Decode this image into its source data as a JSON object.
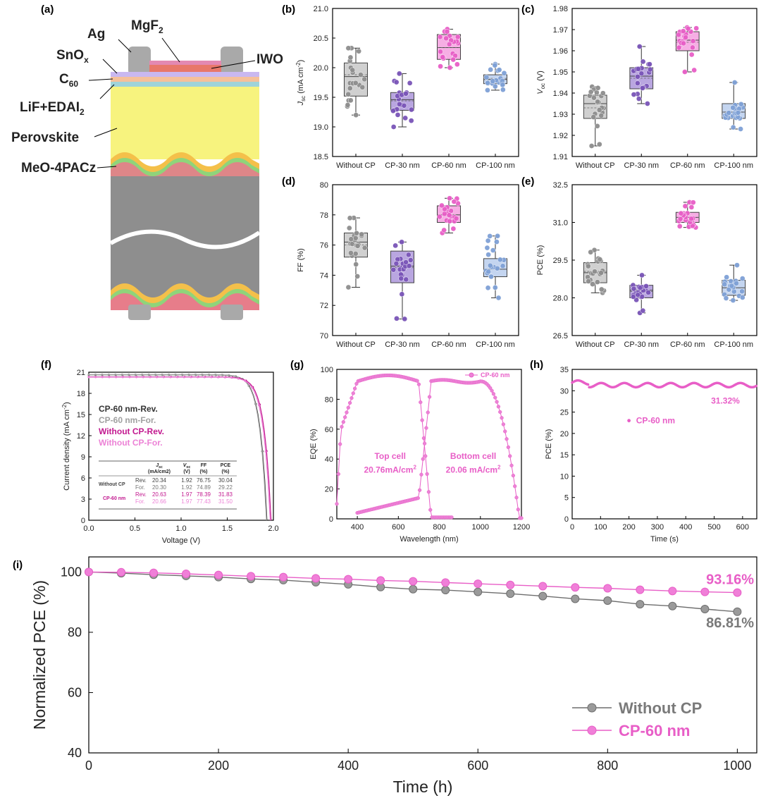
{
  "panels": {
    "a": "(a)",
    "b": "(b)",
    "c": "(c)",
    "d": "(d)",
    "e": "(e)",
    "f": "(f)",
    "g": "(g)",
    "h": "(h)",
    "i": "(i)"
  },
  "colors": {
    "gray": "#8e8e8e",
    "purple": "#7a55b8",
    "pink": "#e85ec7",
    "blue": "#7fa1d6",
    "magenta": "#c2188f",
    "lightpink": "#ec82d6"
  },
  "diagram": {
    "labels": {
      "ag": "Ag",
      "mgf2": "MgF",
      "mgf2_sub": "2",
      "iwo": "IWO",
      "snox": "SnO",
      "snox_sub": "x",
      "c60": "C",
      "c60_sub": "60",
      "lif": "LiF+EDAI",
      "lif_sub": "2",
      "perovskite": "Perovskite",
      "meo": "MeO-4PACz"
    }
  },
  "chart_data": [
    {
      "id": "b",
      "type": "box",
      "categories": [
        "Without CP",
        "CP-30 nm",
        "CP-60 nm",
        "CP-100 nm"
      ],
      "ylabel": "J",
      "ylabel_sub": "sc",
      "ylabel_unit": " (mA cm",
      "ylabel_sup": "-2",
      "ylabel_end": ")",
      "ylim": [
        18.5,
        21.0
      ],
      "ticks": [
        "18.5",
        "19.0",
        "19.5",
        "20.0",
        "20.5",
        "21.0"
      ],
      "stats": [
        {
          "min": 19.2,
          "q1": 19.52,
          "med": 19.85,
          "q3": 20.08,
          "max": 20.33,
          "mean": 19.88
        },
        {
          "min": 19.0,
          "q1": 19.28,
          "med": 19.46,
          "q3": 19.58,
          "max": 19.9,
          "mean": 19.44
        },
        {
          "min": 20.0,
          "q1": 20.14,
          "med": 20.34,
          "q3": 20.56,
          "max": 20.65,
          "mean": 20.34
        },
        {
          "min": 19.62,
          "q1": 19.73,
          "med": 19.8,
          "q3": 19.88,
          "max": 20.06,
          "mean": 19.82
        }
      ]
    },
    {
      "id": "c",
      "type": "box",
      "categories": [
        "Without CP",
        "CP-30 nm",
        "CP-60 nm",
        "CP-100 nm"
      ],
      "ylabel": "V",
      "ylabel_sub": "oc",
      "ylabel_unit": " (V)",
      "ylabel_sup": "",
      "ylabel_end": "",
      "ylim": [
        1.91,
        1.98
      ],
      "ticks": [
        "1.91",
        "1.92",
        "1.93",
        "1.94",
        "1.95",
        "1.96",
        "1.97",
        "1.98"
      ],
      "stats": [
        {
          "min": 1.915,
          "q1": 1.928,
          "med": 1.935,
          "q3": 1.939,
          "max": 1.943,
          "mean": 1.933
        },
        {
          "min": 1.935,
          "q1": 1.942,
          "med": 1.948,
          "q3": 1.952,
          "max": 1.962,
          "mean": 1.947
        },
        {
          "min": 1.95,
          "q1": 1.96,
          "med": 1.965,
          "q3": 1.969,
          "max": 1.971,
          "mean": 1.964
        },
        {
          "min": 1.923,
          "q1": 1.928,
          "med": 1.931,
          "q3": 1.935,
          "max": 1.945,
          "mean": 1.931
        }
      ]
    },
    {
      "id": "d",
      "type": "box",
      "categories": [
        "Without CP",
        "CP-30 nm",
        "CP-60 nm",
        "CP-100 nm"
      ],
      "ylabel": "FF (%)",
      "ylabel_sub": "",
      "ylabel_unit": "",
      "ylabel_sup": "",
      "ylabel_end": "",
      "ylim": [
        70,
        80
      ],
      "ticks": [
        "70",
        "72",
        "74",
        "76",
        "78",
        "80"
      ],
      "stats": [
        {
          "min": 73.2,
          "q1": 75.2,
          "med": 76.2,
          "q3": 76.8,
          "max": 77.8,
          "mean": 76.0
        },
        {
          "min": 71.1,
          "q1": 73.5,
          "med": 74.6,
          "q3": 75.6,
          "max": 76.2,
          "mean": 74.5
        },
        {
          "min": 76.8,
          "q1": 77.5,
          "med": 78.0,
          "q3": 78.6,
          "max": 79.1,
          "mean": 78.0
        },
        {
          "min": 72.5,
          "q1": 73.9,
          "med": 74.4,
          "q3": 75.1,
          "max": 76.6,
          "mean": 74.4
        }
      ]
    },
    {
      "id": "e",
      "type": "box",
      "categories": [
        "Without CP",
        "CP-30 nm",
        "CP-60 nm",
        "CP-100 nm"
      ],
      "ylabel": "PCE (%)",
      "ylabel_sub": "",
      "ylabel_unit": "",
      "ylabel_sup": "",
      "ylabel_end": "",
      "ylim": [
        26.5,
        32.5
      ],
      "ticks": [
        "26.5",
        "28.0",
        "29.5",
        "31.0",
        "32.5"
      ],
      "stats": [
        {
          "min": 28.2,
          "q1": 28.6,
          "med": 29.0,
          "q3": 29.4,
          "max": 29.9,
          "mean": 29.05
        },
        {
          "min": 27.4,
          "q1": 28.0,
          "med": 28.3,
          "q3": 28.5,
          "max": 28.9,
          "mean": 28.25
        },
        {
          "min": 30.8,
          "q1": 31.0,
          "med": 31.2,
          "q3": 31.4,
          "max": 31.8,
          "mean": 31.2
        },
        {
          "min": 27.9,
          "q1": 28.1,
          "med": 28.4,
          "q3": 28.7,
          "max": 29.3,
          "mean": 28.4
        }
      ]
    },
    {
      "id": "f",
      "type": "line",
      "xlabel": "Voltage (V)",
      "ylabel": "Current density (mA cm",
      "ylabel_sup": "-2",
      "ylabel_end": ")",
      "xlim": [
        0,
        2.0
      ],
      "ylim": [
        0,
        21
      ],
      "xticks": [
        "0.0",
        "0.5",
        "1.0",
        "1.5",
        "2.0"
      ],
      "yticks": [
        "0",
        "3",
        "6",
        "9",
        "12",
        "15",
        "18",
        "21"
      ],
      "series": [
        {
          "name": "CP-60 nm-Rev.",
          "jsc": 20.63,
          "voc": 1.97
        },
        {
          "name": "CP-60 nm-For.",
          "jsc": 20.66,
          "voc": 1.97
        },
        {
          "name": "Without CP-Rev.",
          "jsc": 20.34,
          "voc": 1.92
        },
        {
          "name": "Without CP-For.",
          "jsc": 20.3,
          "voc": 1.92
        }
      ],
      "table": {
        "header": [
          "J",
          "sc",
          "(mA/cm",
          "2",
          ")",
          "V",
          "oc",
          "(V)",
          "FF",
          "(%)",
          "PCE",
          "(%)"
        ],
        "rows": [
          {
            "group": "Without CP",
            "scan": "Rev.",
            "jsc": "20.34",
            "voc": "1.92",
            "ff": "76.75",
            "pce": "30.04"
          },
          {
            "group": "",
            "scan": "For.",
            "jsc": "20.30",
            "voc": "1.92",
            "ff": "74.89",
            "pce": "29.22"
          },
          {
            "group": "CP-60 nm",
            "scan": "Rev.",
            "jsc": "20.63",
            "voc": "1.97",
            "ff": "78.39",
            "pce": "31.83"
          },
          {
            "group": "",
            "scan": "For.",
            "jsc": "20.66",
            "voc": "1.97",
            "ff": "77.43",
            "pce": "31.50"
          }
        ]
      }
    },
    {
      "id": "g",
      "type": "line",
      "xlabel": "Wavelength (nm)",
      "ylabel": "EQE (%)",
      "xlim": [
        300,
        1200
      ],
      "ylim": [
        0,
        100
      ],
      "xticks": [
        "400",
        "600",
        "800",
        "1000",
        "1200"
      ],
      "yticks": [
        "0",
        "20",
        "40",
        "60",
        "80",
        "100"
      ],
      "legend": "CP-60 nm",
      "annotations": {
        "top": "Top cell",
        "top_val": "20.76mA/cm",
        "bottom": "Bottom cell",
        "bottom_val": "20.06 mA/cm",
        "sup": "2"
      }
    },
    {
      "id": "h",
      "type": "scatter",
      "xlabel": "Time (s)",
      "ylabel": "PCE (%)",
      "xlim": [
        0,
        650
      ],
      "ylim": [
        0,
        35
      ],
      "xticks": [
        "0",
        "100",
        "200",
        "300",
        "400",
        "500",
        "600"
      ],
      "yticks": [
        "0",
        "5",
        "10",
        "15",
        "20",
        "25",
        "30",
        "35"
      ],
      "legend": "CP-60 nm",
      "value": 31.32,
      "value_label": "31.32%"
    },
    {
      "id": "i",
      "type": "line",
      "xlabel": "Time (h)",
      "ylabel": "Normalized PCE (%)",
      "xlim": [
        0,
        1030
      ],
      "ylim": [
        40,
        105
      ],
      "xticks": [
        "0",
        "200",
        "400",
        "600",
        "800",
        "1000"
      ],
      "yticks": [
        "40",
        "60",
        "80",
        "100"
      ],
      "series": [
        {
          "name": "Without CP",
          "x": [
            0,
            50,
            100,
            150,
            200,
            250,
            300,
            350,
            400,
            450,
            500,
            550,
            600,
            650,
            700,
            750,
            800,
            850,
            900,
            950,
            1000
          ],
          "y": [
            100,
            99.6,
            99.1,
            98.7,
            98.3,
            97.7,
            97.3,
            96.6,
            95.9,
            95.0,
            94.3,
            94.0,
            93.4,
            92.8,
            92.0,
            91.1,
            90.5,
            89.3,
            88.7,
            87.7,
            86.81
          ]
        },
        {
          "name": "CP-60 nm",
          "x": [
            0,
            50,
            100,
            150,
            200,
            250,
            300,
            350,
            400,
            450,
            500,
            550,
            600,
            650,
            700,
            750,
            800,
            850,
            900,
            950,
            1000
          ],
          "y": [
            100,
            99.9,
            99.7,
            99.4,
            99.0,
            98.6,
            98.3,
            97.9,
            97.6,
            97.2,
            96.9,
            96.5,
            96.1,
            95.7,
            95.3,
            94.9,
            94.6,
            94.1,
            93.7,
            93.4,
            93.16
          ]
        }
      ],
      "end_labels": [
        "86.81%",
        "93.16%"
      ]
    }
  ]
}
